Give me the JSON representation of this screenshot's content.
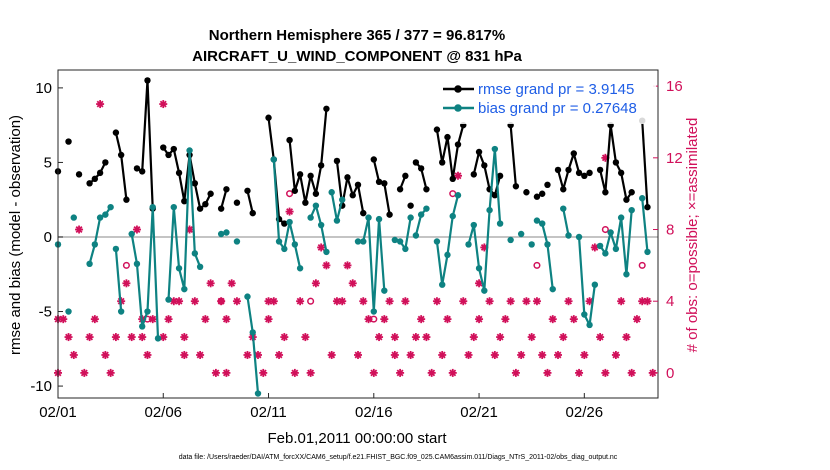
{
  "chart_data": {
    "type": "line",
    "title": [
      "Northern Hemisphere 365 / 377 = 96.817%",
      "AIRCRAFT_U_WIND_COMPONENT @ 831 hPa"
    ],
    "xlabel": "Feb.01,2011 00:00:00 start",
    "ylabel": "rmse and bias (model - observation)",
    "ylabel_right": "# of obs: o=possible; ×=assimilated",
    "x_tick_labels": [
      "02/01",
      "02/06",
      "02/11",
      "02/16",
      "02/21",
      "02/26"
    ],
    "x_tick_values": [
      0,
      5,
      10,
      15,
      20,
      25
    ],
    "xlim": [
      0,
      28.5
    ],
    "ylim": [
      -10.8,
      11.2
    ],
    "y_ticks": [
      -10,
      -5,
      0,
      5,
      10
    ],
    "ylim_right": [
      -1.4,
      16.9
    ],
    "y_ticks_right": [
      0,
      4,
      8,
      12,
      16
    ],
    "grid": false,
    "legend_position": "top-right",
    "colors": {
      "rmse": "#000000",
      "bias": "#0e8282",
      "obs": "#d1105a",
      "legend_text": "#1f5ee6",
      "zero_line": "#b0b0b0"
    },
    "series": [
      {
        "name": "rmse grand pr = 3.9145",
        "color": "#000000",
        "segments": [
          [
            [
              0,
              4.4
            ]
          ],
          [
            [
              0.5,
              6.4
            ]
          ],
          [
            [
              1,
              4.2
            ]
          ],
          [
            [
              1.5,
              3.6
            ],
            [
              1.75,
              3.9
            ],
            [
              2,
              4.3
            ],
            [
              2.25,
              5
            ]
          ],
          [
            [
              2.75,
              7
            ],
            [
              3,
              5.5
            ],
            [
              3.25,
              2.5
            ]
          ],
          [
            [
              3.75,
              4.6
            ],
            [
              4,
              4.4
            ],
            [
              4.25,
              10.5
            ],
            [
              4.5,
              1.9
            ]
          ],
          [
            [
              5,
              6
            ],
            [
              5.25,
              5.5
            ],
            [
              5.5,
              5.9
            ],
            [
              5.75,
              4.3
            ],
            [
              6,
              2.4
            ],
            [
              6.25,
              5.5
            ],
            [
              6.5,
              3.6
            ],
            [
              6.75,
              1.9
            ],
            [
              7,
              2.2
            ],
            [
              7.25,
              2.9
            ]
          ],
          [
            [
              7.75,
              1.9
            ],
            [
              8,
              3.2
            ]
          ],
          [
            [
              8.5,
              2.3
            ]
          ],
          [
            [
              9,
              3.1
            ],
            [
              9.25,
              1.6
            ]
          ],
          [
            [
              10,
              8
            ],
            [
              10.25,
              5.2
            ],
            [
              10.5,
              1.2
            ],
            [
              10.75,
              0.9
            ]
          ],
          [
            [
              11,
              6.5
            ],
            [
              11.25,
              3.1
            ],
            [
              11.5,
              4.2
            ],
            [
              11.75,
              2.3
            ],
            [
              12,
              4.1
            ],
            [
              12.25,
              2.9
            ],
            [
              12.5,
              4.8
            ],
            [
              12.75,
              8.6
            ]
          ],
          [
            [
              13.25,
              5.1
            ],
            [
              13.5,
              2.1
            ],
            [
              13.75,
              4
            ],
            [
              14,
              2.8
            ],
            [
              14.25,
              3.5
            ],
            [
              14.5,
              1.6
            ]
          ],
          [
            [
              15,
              5.2
            ],
            [
              15.25,
              3.7
            ],
            [
              15.5,
              3.6
            ],
            [
              15.75,
              1.5
            ]
          ],
          [
            [
              16.25,
              3.2
            ],
            [
              16.5,
              4.1
            ]
          ],
          [
            [
              16.75,
              2.1
            ]
          ],
          [
            [
              17,
              5
            ],
            [
              17.25,
              4.6
            ],
            [
              17.5,
              3.2
            ]
          ],
          [
            [
              18,
              7.2
            ],
            [
              18.25,
              5
            ],
            [
              18.5,
              6.7
            ],
            [
              18.75,
              3.9
            ],
            [
              19,
              6.2
            ],
            [
              19.25,
              7.5
            ]
          ],
          [
            [
              19.75,
              4.2
            ],
            [
              20,
              5.7
            ],
            [
              20.25,
              4.8
            ],
            [
              20.5,
              3.2
            ],
            [
              20.75,
              2.8
            ],
            [
              21,
              4.1
            ]
          ],
          [
            [
              21.5,
              7.5
            ],
            [
              21.75,
              3.4
            ]
          ],
          [
            [
              22.25,
              3
            ]
          ],
          [
            [
              22.75,
              2.7
            ],
            [
              23,
              2.9
            ]
          ],
          [
            [
              23.25,
              3.5
            ]
          ],
          [
            [
              23.75,
              4.5
            ],
            [
              24,
              3.2
            ],
            [
              24.25,
              4.5
            ],
            [
              24.5,
              5.6
            ],
            [
              24.75,
              4.3
            ],
            [
              25,
              4.1
            ],
            [
              25.25,
              4.3
            ]
          ],
          [
            [
              25.75,
              4.5
            ],
            [
              26,
              3
            ],
            [
              26.25,
              7.5
            ],
            [
              26.5,
              5
            ],
            [
              26.75,
              4.3
            ],
            [
              27,
              2.5
            ],
            [
              27.25,
              3
            ]
          ],
          [
            [
              27.75,
              7.8
            ],
            [
              28,
              2
            ]
          ]
        ]
      },
      {
        "name": "bias grand pr = 0.27648",
        "color": "#0e8282",
        "segments": [
          [
            [
              0,
              -0.5
            ]
          ],
          [
            [
              0.5,
              -5
            ]
          ],
          [
            [
              0.75,
              1.3
            ]
          ],
          [
            [
              1.5,
              -1.8
            ],
            [
              1.75,
              -0.5
            ],
            [
              2,
              1.3
            ],
            [
              2.25,
              1.5
            ],
            [
              2.5,
              2
            ]
          ],
          [
            [
              2.75,
              -0.8
            ],
            [
              3,
              -5
            ]
          ],
          [
            [
              3.5,
              0.2
            ],
            [
              3.75,
              -1.8
            ],
            [
              4,
              -6
            ],
            [
              4.25,
              -5
            ],
            [
              4.5,
              2
            ],
            [
              4.75,
              -6.8
            ]
          ],
          [
            [
              5.25,
              -4.2
            ],
            [
              5.5,
              2
            ],
            [
              5.75,
              -2.1
            ],
            [
              6,
              -3.5
            ],
            [
              6.25,
              5.8
            ],
            [
              6.5,
              -1.1
            ],
            [
              6.75,
              -2
            ]
          ],
          [
            [
              7.75,
              0.2
            ],
            [
              8,
              0.3
            ]
          ],
          [
            [
              8.5,
              -0.3
            ]
          ],
          [
            [
              9,
              -4
            ],
            [
              9.25,
              -6.4
            ],
            [
              9.5,
              -10.5
            ]
          ],
          [
            [
              10.25,
              5.2
            ],
            [
              10.5,
              -0.3
            ],
            [
              10.75,
              -0.8
            ],
            [
              11,
              1
            ],
            [
              11.25,
              -0.5
            ],
            [
              11.5,
              -2.1
            ]
          ],
          [
            [
              12,
              1.3
            ],
            [
              12.25,
              2.1
            ],
            [
              12.5,
              0.8
            ],
            [
              12.75,
              -1
            ]
          ],
          [
            [
              13,
              3
            ],
            [
              13.25,
              1.1
            ],
            [
              13.5,
              2.5
            ]
          ],
          [
            [
              14.25,
              -0.3
            ],
            [
              14.5,
              -0.3
            ],
            [
              14.75,
              1.3
            ],
            [
              15,
              -5
            ],
            [
              15.25,
              1.2
            ],
            [
              15.5,
              -3.6
            ]
          ],
          [
            [
              16,
              -0.2
            ],
            [
              16.25,
              -0.3
            ],
            [
              16.5,
              -0.8
            ],
            [
              16.75,
              1.3
            ]
          ],
          [
            [
              17,
              0.1
            ],
            [
              17.25,
              1.5
            ],
            [
              17.5,
              1.9
            ]
          ],
          [
            [
              18,
              -0.3
            ],
            [
              18.25,
              -3.2
            ],
            [
              18.5,
              -1.2
            ],
            [
              18.75,
              1.4
            ],
            [
              19,
              2.8
            ]
          ],
          [
            [
              19.5,
              -0.5
            ],
            [
              19.75,
              0.8
            ],
            [
              20,
              -2.1
            ],
            [
              20.25,
              -3.6
            ],
            [
              20.5,
              1.8
            ],
            [
              20.75,
              5.9
            ],
            [
              21,
              0.9
            ]
          ],
          [
            [
              21.5,
              -0.2
            ]
          ],
          [
            [
              22,
              0.2
            ]
          ],
          [
            [
              22.5,
              -0.5
            ]
          ],
          [
            [
              22.75,
              1.1
            ],
            [
              23,
              0.9
            ],
            [
              23.25,
              -0.5
            ],
            [
              23.5,
              -3.5
            ]
          ],
          [
            [
              24,
              1.9
            ],
            [
              24.25,
              0.1
            ]
          ],
          [
            [
              24.75,
              0
            ],
            [
              25,
              -5.2
            ],
            [
              25.25,
              -5.9
            ],
            [
              25.5,
              -3.2
            ]
          ],
          [
            [
              25.75,
              -0.6
            ],
            [
              26,
              -1.1
            ],
            [
              26.25,
              0.3
            ],
            [
              26.5,
              -0.8
            ],
            [
              26.75,
              1.3
            ],
            [
              27,
              -2.5
            ],
            [
              27.25,
              1.8
            ]
          ],
          [
            [
              27.75,
              2.6
            ],
            [
              28,
              -1
            ]
          ]
        ]
      }
    ],
    "obs_assimilated": [
      [
        0,
        0
      ],
      [
        0,
        3
      ],
      [
        0.25,
        3
      ],
      [
        0.5,
        2
      ],
      [
        0.75,
        1
      ],
      [
        1,
        8
      ],
      [
        1.25,
        0
      ],
      [
        1.5,
        2
      ],
      [
        1.75,
        3
      ],
      [
        2,
        15
      ],
      [
        2.25,
        1
      ],
      [
        2.5,
        0
      ],
      [
        2.75,
        2
      ],
      [
        3,
        4
      ],
      [
        3.25,
        5
      ],
      [
        3.5,
        2
      ],
      [
        3.75,
        8
      ],
      [
        4,
        3
      ],
      [
        4,
        2
      ],
      [
        4.25,
        1
      ],
      [
        4.5,
        3
      ],
      [
        5,
        2
      ],
      [
        5,
        15
      ],
      [
        5.25,
        3
      ],
      [
        5.5,
        4
      ],
      [
        5.75,
        4
      ],
      [
        6,
        2
      ],
      [
        6,
        1
      ],
      [
        6.25,
        8
      ],
      [
        6.5,
        4
      ],
      [
        6.75,
        1
      ],
      [
        7,
        3
      ],
      [
        7.25,
        5
      ],
      [
        7.5,
        0
      ],
      [
        7.75,
        4
      ],
      [
        8,
        0
      ],
      [
        8,
        3
      ],
      [
        8.25,
        5
      ],
      [
        8.5,
        4
      ],
      [
        9,
        1
      ],
      [
        9.25,
        2
      ],
      [
        9.5,
        1
      ],
      [
        9.75,
        0
      ],
      [
        10,
        3
      ],
      [
        10,
        4
      ],
      [
        10.25,
        4
      ],
      [
        10.5,
        1
      ],
      [
        10.75,
        2
      ],
      [
        11,
        9
      ],
      [
        11.25,
        0
      ],
      [
        11.5,
        4
      ],
      [
        11.75,
        2
      ],
      [
        12,
        0
      ],
      [
        12.25,
        5
      ],
      [
        12.5,
        7
      ],
      [
        12.75,
        6
      ],
      [
        13,
        1
      ],
      [
        13.25,
        4
      ],
      [
        13.5,
        4
      ],
      [
        13.75,
        6
      ],
      [
        14,
        5
      ],
      [
        14.25,
        1
      ],
      [
        14.5,
        4
      ],
      [
        14.75,
        3
      ],
      [
        15,
        0
      ],
      [
        15.25,
        2
      ],
      [
        15.5,
        3
      ],
      [
        15.75,
        4
      ],
      [
        16,
        2
      ],
      [
        16,
        1
      ],
      [
        16.25,
        0
      ],
      [
        16.5,
        4
      ],
      [
        16.75,
        1
      ],
      [
        17,
        2
      ],
      [
        17.25,
        3
      ],
      [
        17.5,
        2
      ],
      [
        17.75,
        0
      ],
      [
        18,
        4
      ],
      [
        18.25,
        1
      ],
      [
        18.5,
        3
      ],
      [
        18.75,
        0
      ],
      [
        19,
        11
      ],
      [
        19.25,
        4
      ],
      [
        19.5,
        1
      ],
      [
        19.75,
        2
      ],
      [
        20,
        3
      ],
      [
        20,
        5
      ],
      [
        20.25,
        7
      ],
      [
        20.5,
        4
      ],
      [
        20.75,
        1
      ],
      [
        21,
        2
      ],
      [
        21.25,
        3
      ],
      [
        21.5,
        4
      ],
      [
        21.75,
        0
      ],
      [
        22,
        1
      ],
      [
        22.25,
        4
      ],
      [
        22.5,
        2
      ],
      [
        22.75,
        4
      ],
      [
        23,
        1
      ],
      [
        23.25,
        0
      ],
      [
        23.5,
        3
      ],
      [
        23.75,
        1
      ],
      [
        24,
        2
      ],
      [
        24.25,
        4
      ],
      [
        24.5,
        3
      ],
      [
        24.75,
        0
      ],
      [
        25,
        1
      ],
      [
        25.25,
        4
      ],
      [
        25.5,
        7
      ],
      [
        25.75,
        2
      ],
      [
        26,
        0
      ],
      [
        26,
        12
      ],
      [
        26.5,
        1
      ],
      [
        26.75,
        4
      ],
      [
        27,
        2
      ],
      [
        27.25,
        0
      ],
      [
        27.5,
        3
      ],
      [
        27.75,
        4
      ],
      [
        28,
        4
      ],
      [
        28.25,
        0
      ]
    ],
    "obs_possible": [
      [
        3.25,
        6
      ],
      [
        4.25,
        3
      ],
      [
        7.75,
        4
      ],
      [
        11,
        10
      ],
      [
        12,
        4
      ],
      [
        15,
        3
      ],
      [
        18.75,
        10
      ],
      [
        22.75,
        6
      ],
      [
        26,
        8
      ],
      [
        27.75,
        6
      ]
    ]
  },
  "footnote": "data file: /Users/raeder/DAI/ATM_forcXX/CAM6_setup/f.e21.FHIST_BGC.f09_025.CAM6assim.011/Diags_NTrS_2011-02/obs_diag_output.nc"
}
